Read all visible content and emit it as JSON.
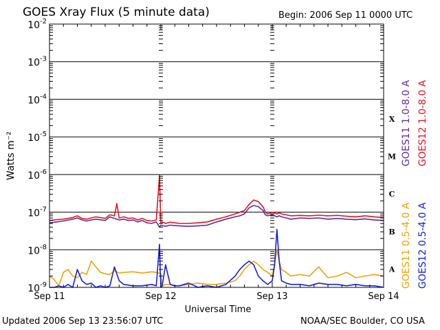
{
  "header": {
    "title": "GOES Xray Flux (5 minute data)",
    "begin": "Begin:  2006 Sep 11 0000 UTC"
  },
  "footer": {
    "updated": "Updated 2006 Sep 13 23:56:07 UTC",
    "credit": "NOAA/SEC Boulder, CO USA"
  },
  "colors": {
    "goes11_long": "#5a2ca0",
    "goes12_long": "#e8101c",
    "goes11_short": "#f5a000",
    "goes12_short": "#1020e0",
    "grid": "#000000"
  },
  "chart_data": {
    "type": "line",
    "title": "GOES Xray Flux (5 minute data)",
    "xlabel": "Universal Time",
    "ylabel": "Watts m⁻²",
    "yscale": "log",
    "xlim": [
      0,
      72
    ],
    "x_units": "hours since 2006 Sep 11 0000 UTC",
    "ylim": [
      1e-09,
      0.01
    ],
    "x_ticks": [
      {
        "x": 0,
        "label": "Sep 11"
      },
      {
        "x": 24,
        "label": "Sep 12"
      },
      {
        "x": 48,
        "label": "Sep 13"
      },
      {
        "x": 72,
        "label": "Sep 14"
      }
    ],
    "y_ticks": [
      {
        "exp": -2,
        "label": "10",
        "sup": "-2"
      },
      {
        "exp": -3,
        "label": "10",
        "sup": "-3"
      },
      {
        "exp": -4,
        "label": "10",
        "sup": "-4"
      },
      {
        "exp": -5,
        "label": "10",
        "sup": "-5"
      },
      {
        "exp": -6,
        "label": "10",
        "sup": "-6"
      },
      {
        "exp": -7,
        "label": "10",
        "sup": "-7"
      },
      {
        "exp": -8,
        "label": "10",
        "sup": "-8"
      },
      {
        "exp": -9,
        "label": "10",
        "sup": "-9"
      }
    ],
    "flare_classes": [
      {
        "label": "X",
        "exp": -4
      },
      {
        "label": "M",
        "exp": -5
      },
      {
        "label": "C",
        "exp": -6
      },
      {
        "label": "B",
        "exp": -7
      },
      {
        "label": "A",
        "exp": -8
      }
    ],
    "grid": true,
    "series": [
      {
        "name": "GOES11 1.0-8.0 A",
        "color": "#5a2ca0",
        "x": [
          0,
          1.5,
          3,
          5,
          6,
          7,
          8,
          9,
          10,
          12,
          13,
          14,
          15,
          16,
          17,
          18,
          19,
          20,
          21,
          22,
          23,
          23.7,
          24,
          24.3,
          25,
          26,
          27,
          28,
          30,
          32,
          34,
          36,
          38,
          40,
          41,
          42,
          43,
          44,
          45,
          46,
          46.5,
          47,
          48,
          48.5,
          49,
          49.5,
          50,
          51,
          52,
          54,
          56,
          58,
          60,
          62,
          64,
          66,
          68,
          70,
          72
        ],
        "y": [
          5.2e-08,
          5.5e-08,
          5.8e-08,
          6.5e-08,
          7e-08,
          6.2e-08,
          5.8e-08,
          6.2e-08,
          6.5e-08,
          6e-08,
          7.5e-08,
          6.8e-08,
          6.2e-08,
          6.5e-08,
          6e-08,
          6.2e-08,
          5.5e-08,
          6e-08,
          5.2e-08,
          5e-08,
          5.5e-08,
          4e-08,
          4.5e-08,
          4.4e-08,
          4.2e-08,
          4.5e-08,
          4.4e-08,
          4.3e-08,
          4.2e-08,
          4.3e-08,
          4.5e-08,
          5.5e-08,
          6.5e-08,
          7.5e-08,
          8e-08,
          9e-08,
          1.3e-07,
          1.5e-07,
          1.4e-07,
          1.1e-07,
          8.5e-08,
          8e-08,
          8.5e-08,
          8e-08,
          7.5e-08,
          8e-08,
          7.5e-08,
          7e-08,
          6.5e-08,
          7e-08,
          6.8e-08,
          7e-08,
          6.5e-08,
          6.8e-08,
          6.5e-08,
          6.3e-08,
          6.6e-08,
          6.2e-08,
          6e-08
        ]
      },
      {
        "name": "GOES12 1.0-8.0 A",
        "color": "#e8101c",
        "x": [
          0,
          1.5,
          3,
          5,
          6,
          7,
          8,
          9,
          10,
          12,
          13,
          14,
          14.5,
          15,
          16,
          17,
          18,
          19,
          20,
          21,
          22,
          23,
          23.7,
          23.85,
          24,
          24.3,
          25,
          26,
          27,
          28,
          30,
          32,
          34,
          36,
          38,
          40,
          41,
          42,
          43,
          44,
          45,
          46,
          46.5,
          47,
          48,
          48.5,
          49,
          49.5,
          50,
          51,
          52,
          54,
          56,
          58,
          60,
          62,
          64,
          66,
          68,
          70,
          72
        ],
        "y": [
          6e-08,
          6.3e-08,
          6.5e-08,
          7.2e-08,
          8e-08,
          6.8e-08,
          6.5e-08,
          7e-08,
          7.5e-08,
          6.8e-08,
          8.5e-08,
          8e-08,
          1.7e-07,
          7e-08,
          7.5e-08,
          6.8e-08,
          7e-08,
          6.2e-08,
          6.8e-08,
          6e-08,
          5.8e-08,
          6.2e-08,
          9.5e-07,
          2e-07,
          5e-08,
          5.5e-08,
          5e-08,
          5.4e-08,
          5.2e-08,
          5e-08,
          5e-08,
          5.2e-08,
          5.5e-08,
          6.5e-08,
          7.5e-08,
          9e-08,
          1e-07,
          1.1e-07,
          1.6e-07,
          2.1e-07,
          1.9e-07,
          1.4e-07,
          1e-07,
          9e-08,
          1e-07,
          9.5e-08,
          9e-08,
          9.5e-08,
          9e-08,
          8.5e-08,
          8e-08,
          8.2e-08,
          8e-08,
          8.3e-08,
          8e-08,
          8.2e-08,
          7.8e-08,
          7.5e-08,
          8e-08,
          7.5e-08,
          7.2e-08
        ]
      },
      {
        "name": "GOES11 0.5-4.0 A",
        "color": "#f5a000",
        "x": [
          0,
          1,
          2,
          3,
          4,
          5,
          6,
          7,
          8,
          9,
          10,
          11,
          12,
          13,
          14,
          15,
          16,
          18,
          20,
          22,
          23,
          24,
          24.3,
          25,
          26,
          27,
          28,
          30,
          32,
          34,
          36,
          38,
          40,
          41,
          42,
          43,
          44,
          45,
          46,
          47,
          48,
          48.5,
          49,
          49.5,
          50,
          51,
          52,
          54,
          56,
          58,
          60,
          62,
          64,
          66,
          68,
          70,
          72
        ],
        "y": [
          2e-09,
          1.6e-09,
          1.1e-09,
          2.5e-09,
          3e-09,
          2e-09,
          1.8e-09,
          2.5e-09,
          2.2e-09,
          5e-09,
          3.5e-09,
          2.5e-09,
          2.3e-09,
          2.2e-09,
          2.8e-09,
          2.4e-09,
          2.5e-09,
          2.6e-09,
          2.4e-09,
          2.6e-09,
          2.5e-09,
          2.3e-09,
          1.1e-09,
          1.2e-09,
          1.2e-09,
          1.1e-09,
          1.1e-09,
          1.2e-09,
          1.3e-09,
          1.2e-09,
          1.2e-09,
          1.3e-09,
          1.5e-09,
          2e-09,
          3e-09,
          4e-09,
          5e-09,
          4e-09,
          3e-09,
          2.5e-09,
          2e-09,
          4e-09,
          1e-08,
          5e-09,
          3e-09,
          2.5e-09,
          2e-09,
          2.2e-09,
          2e-09,
          3.5e-09,
          1.8e-09,
          2e-09,
          2.5e-09,
          1.8e-09,
          2e-09,
          2.2e-09,
          2e-09
        ]
      },
      {
        "name": "GOES12 0.5-4.0 A",
        "color": "#1020e0",
        "x": [
          0,
          1,
          2,
          3,
          4,
          5,
          6,
          7,
          8,
          9,
          10,
          11,
          12,
          13,
          14,
          15,
          16,
          18,
          20,
          22,
          23,
          23.7,
          23.85,
          24,
          24.3,
          25,
          26,
          27,
          28,
          30,
          32,
          34,
          36,
          38,
          40,
          41,
          42,
          43,
          44,
          45,
          46,
          47,
          48,
          48.5,
          49,
          49.5,
          50,
          51,
          52,
          54,
          56,
          58,
          60,
          62,
          64,
          66,
          68,
          70,
          72
        ],
        "y": [
          1e-09,
          1e-09,
          1.1e-09,
          1e-09,
          1.2e-09,
          1e-09,
          3e-09,
          1.5e-09,
          1.2e-09,
          1.3e-09,
          1e-09,
          1.1e-09,
          1e-09,
          1.1e-09,
          3.5e-09,
          1.5e-09,
          1.2e-09,
          1.1e-09,
          1.1e-09,
          1.2e-09,
          1.1e-09,
          1.4e-08,
          3e-09,
          1e-09,
          1.1e-09,
          4e-09,
          1.2e-09,
          1.1e-09,
          1.1e-09,
          1.3e-09,
          1e-09,
          1.1e-09,
          1e-09,
          1.2e-09,
          2e-09,
          3e-09,
          4e-09,
          5e-09,
          4e-09,
          2e-09,
          1.5e-09,
          1.2e-09,
          1.5e-09,
          4e-09,
          3.5e-08,
          5e-09,
          1.5e-09,
          1.3e-09,
          1.2e-09,
          1.2e-09,
          1.1e-09,
          1.3e-09,
          1.2e-09,
          1.2e-09,
          1.1e-09,
          1.2e-09,
          1.1e-09,
          1.1e-09,
          1e-09
        ]
      }
    ]
  }
}
